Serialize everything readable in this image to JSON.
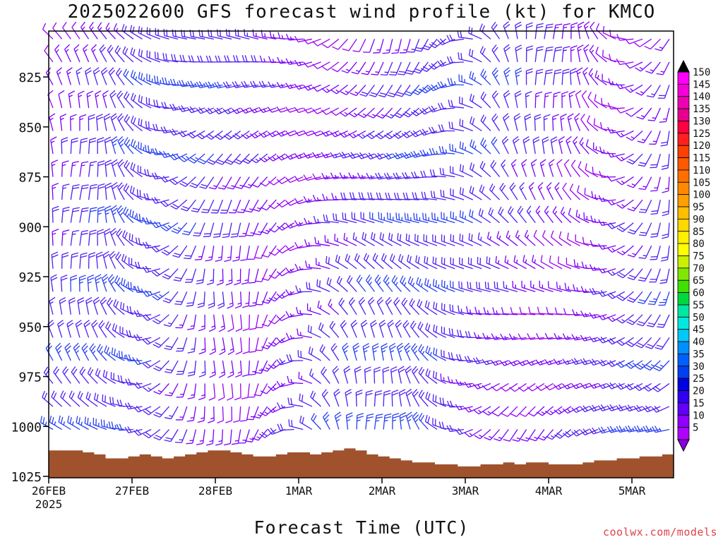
{
  "title": "2025022600 GFS forecast wind profile (kt) for KMCO",
  "x_axis_title": "Forecast Time (UTC)",
  "credit": "coolwx.com/models",
  "colorbar_ticks": [
    "150",
    "145",
    "140",
    "135",
    "130",
    "125",
    "120",
    "115",
    "110",
    "105",
    "100",
    "95",
    "90",
    "85",
    "80",
    "75",
    "70",
    "65",
    "60",
    "55",
    "50",
    "45",
    "40",
    "35",
    "30",
    "25",
    "20",
    "15",
    "10",
    "5"
  ],
  "colorbar_colors": [
    "#ff00ff",
    "#f600d8",
    "#ee00b4",
    "#e60090",
    "#ff0040",
    "#ff2020",
    "#ff4000",
    "#ff5a00",
    "#ff7000",
    "#ff8a00",
    "#ff9f00",
    "#ffbe00",
    "#ffd800",
    "#fff000",
    "#ffff00",
    "#c8f000",
    "#80e800",
    "#40e000",
    "#00d840",
    "#00e8a0",
    "#00e8e0",
    "#00c8f8",
    "#0090ff",
    "#0060ff",
    "#0040f0",
    "#0000e0",
    "#3000f0",
    "#6000f8",
    "#9000ff",
    "#b000ff"
  ],
  "chart_data": {
    "type": "wind-barb time-height profile",
    "yaxis": {
      "label": "",
      "ticks": [
        825,
        850,
        875,
        900,
        925,
        950,
        975,
        1000,
        1025
      ],
      "range": [
        1025,
        800
      ]
    },
    "xaxis": {
      "ticks": [
        "26FEB",
        "27FEB",
        "28FEB",
        "1MAR",
        "2MAR",
        "3MAR",
        "4MAR",
        "5MAR"
      ],
      "start_year": "2025",
      "range_days": [
        0,
        7.5
      ]
    },
    "colorbar": {
      "units": "kt",
      "min": 5,
      "max": 150,
      "step": 5
    },
    "terrain_pressure_hpa": [
      1012,
      1012,
      1012,
      1013,
      1014,
      1016,
      1016,
      1015,
      1014,
      1015,
      1016,
      1015,
      1014,
      1013,
      1012,
      1012,
      1013,
      1014,
      1015,
      1015,
      1014,
      1013,
      1013,
      1014,
      1013,
      1012,
      1011,
      1012,
      1014,
      1015,
      1016,
      1017,
      1018,
      1018,
      1019,
      1019,
      1020,
      1020,
      1019,
      1019,
      1018,
      1019,
      1018,
      1018,
      1019,
      1019,
      1019,
      1018,
      1017,
      1017,
      1016,
      1016,
      1015,
      1015,
      1014
    ]
  }
}
